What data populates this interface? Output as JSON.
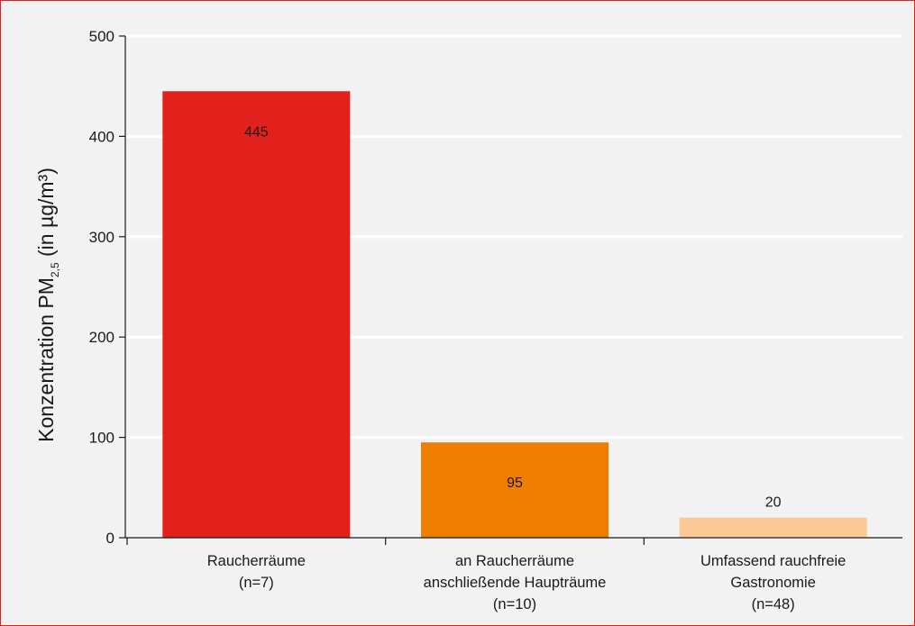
{
  "chart_data": {
    "type": "bar",
    "categories": [
      [
        "Raucherräume",
        "(n=7)"
      ],
      [
        "an Raucherräume",
        "anschließende Haupträume",
        "(n=10)"
      ],
      [
        "Umfassend rauchfreie",
        "Gastronomie",
        "(n=48)"
      ]
    ],
    "values": [
      445,
      95,
      20
    ],
    "data_labels": [
      "445",
      "95",
      "20"
    ],
    "ylim": [
      0,
      500
    ],
    "yticks": [
      0,
      100,
      200,
      300,
      400,
      500
    ],
    "ylabel": {
      "main": "Konzentration PM",
      "subscript": "2,5",
      "suffix": " (in µg/m³)"
    },
    "bar_colors": [
      "#e2201c",
      "#ee7d00",
      "#fbc896"
    ],
    "grid": true,
    "grid_color": "#ffffff",
    "legend": "none"
  },
  "colors": {
    "frame_border": "#e2201c",
    "background": "#f2f2f2",
    "axis": "#1a1a1a"
  }
}
